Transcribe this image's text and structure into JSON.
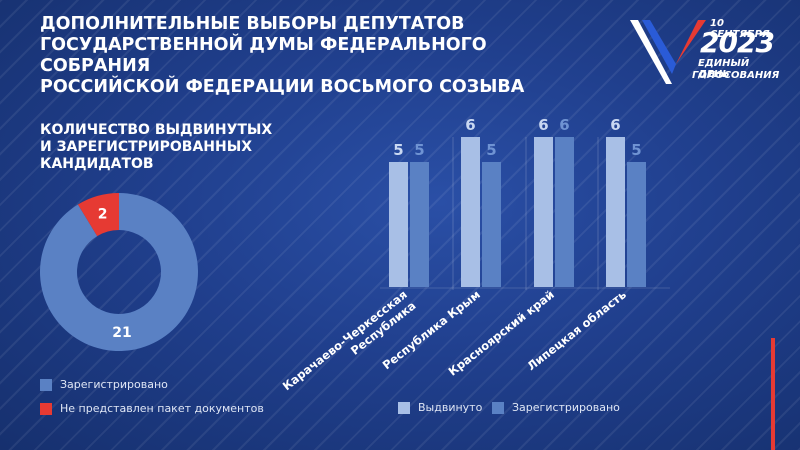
{
  "header": {
    "title_line1": "ДОПОЛНИТЕЛЬНЫЕ ВЫБОРЫ ДЕПУТАТОВ",
    "title_line2": "ГОСУДАРСТВЕННОЙ ДУМЫ ФЕДЕРАЛЬНОГО СОБРАНИЯ",
    "title_line3": "РОССИЙСКОЙ ФЕДЕРАЦИИ ВОСЬМОГО СОЗЫВА"
  },
  "logo": {
    "date": "10 СЕНТЯБРЯ",
    "year": "2023",
    "line1": "ЕДИНЫЙ ДЕНЬ",
    "line2": "ГОЛОСОВАНИЯ",
    "colors": [
      "#ffffff",
      "#2a5bd7",
      "#e63a33"
    ]
  },
  "section": {
    "title_line1": "КОЛИЧЕСТВО ВЫДВИНУТЫХ",
    "title_line2": "И ЗАРЕГИСТРИРОВАННЫХ",
    "title_line3": "КАНДИДАТОВ"
  },
  "colors": {
    "registered_donut": "#5a81c4",
    "not_submitted": "#e63a33",
    "nominated": "#a8bfe6",
    "registered_bar": "#5a81c4",
    "value_light": "#c9d8f2",
    "value_dark": "#6f93d3"
  },
  "chart_data": [
    {
      "type": "pie",
      "donut": true,
      "labels": [
        "Зарегистрировано",
        "Не представлен пакет документов"
      ],
      "values": [
        21,
        2
      ],
      "legend": [
        "Зарегистрировано",
        "Не представлен пакет документов"
      ],
      "legend_position": "bottom-left"
    },
    {
      "type": "bar",
      "categories": [
        "Карачаево-Черкесская Республика",
        "Республика Крым",
        "Красноярский край",
        "Липецкая область"
      ],
      "series": [
        {
          "name": "Выдвинуто",
          "values": [
            5,
            6,
            6,
            6
          ]
        },
        {
          "name": "Зарегистрировано",
          "values": [
            5,
            5,
            6,
            5
          ]
        }
      ],
      "ylim": [
        0,
        6
      ],
      "grid": false,
      "legend_position": "bottom"
    }
  ]
}
